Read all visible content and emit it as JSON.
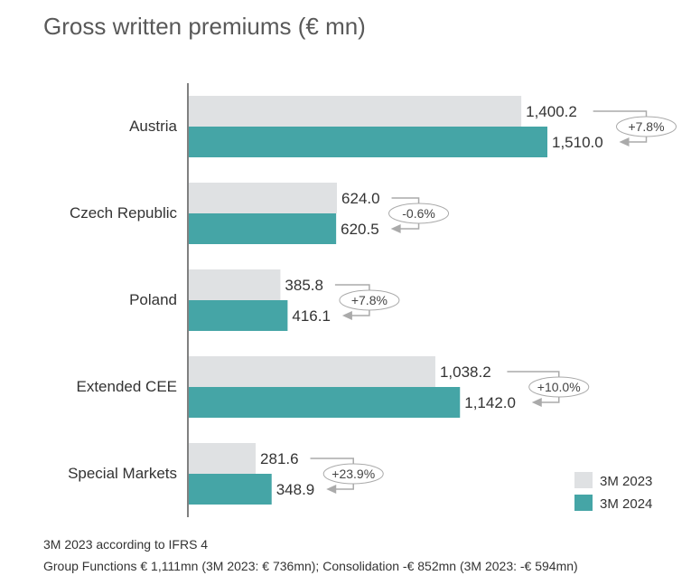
{
  "chart_data": {
    "type": "bar",
    "orientation": "horizontal",
    "title": "Gross written premiums (€ mn)",
    "categories": [
      "Austria",
      "Czech Republic",
      "Poland",
      "Extended CEE",
      "Special Markets"
    ],
    "series": [
      {
        "name": "3M 2023",
        "values": [
          1400.2,
          624.0,
          385.8,
          1038.2,
          281.6
        ],
        "labels": [
          "1,400.2",
          "624.0",
          "385.8",
          "1,038.2",
          "281.6"
        ],
        "color": "#dfe1e3"
      },
      {
        "name": "3M 2024",
        "values": [
          1510.0,
          620.5,
          416.1,
          1142.0,
          348.9
        ],
        "labels": [
          "1,510.0",
          "620.5",
          "416.1",
          "1,142.0",
          "348.9"
        ],
        "color": "#45a5a6"
      }
    ],
    "changes": [
      "+7.8%",
      "-0.6%",
      "+7.8%",
      "+10.0%",
      "+23.9%"
    ],
    "xlim": [
      0,
      1510
    ],
    "grid": false,
    "legend": "bottom-right",
    "annotation_color": "#aaaaaa"
  },
  "footnotes": [
    "3M 2023 according to IFRS 4",
    "Group Functions € 1,111mn (3M 2023: € 736mn); Consolidation -€ 852mn (3M 2023: -€ 594mn)"
  ]
}
